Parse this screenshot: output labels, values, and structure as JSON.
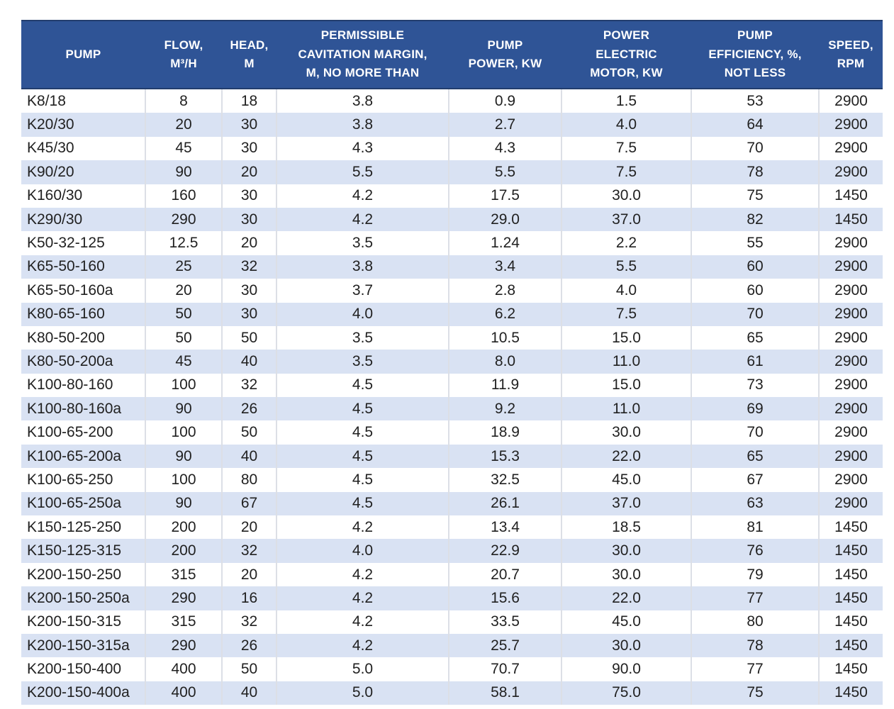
{
  "colors": {
    "header_bg": "#2f5496",
    "header_text": "#ffffff",
    "stripe_bg": "#d9e2f3",
    "cell_text": "#212121"
  },
  "table": {
    "columns": [
      {
        "key": "pump",
        "label": "PUMP"
      },
      {
        "key": "flow",
        "label": "FLOW,\nM³/H"
      },
      {
        "key": "head",
        "label": "HEAD,\nM"
      },
      {
        "key": "cavitation_margin",
        "label": "PERMISSIBLE\nCAVITATION MARGIN,\nM, NO MORE THAN"
      },
      {
        "key": "pump_power",
        "label": "PUMP\nPOWER, KW"
      },
      {
        "key": "motor_power",
        "label": "POWER\nELECTRIC\nMOTOR, KW"
      },
      {
        "key": "efficiency",
        "label": "PUMP\nEFFICIENCY, %,\nNOT LESS"
      },
      {
        "key": "speed",
        "label": "SPEED,\nRPM"
      }
    ],
    "rows": [
      [
        "K8/18",
        "8",
        "18",
        "3.8",
        "0.9",
        "1.5",
        "53",
        "2900"
      ],
      [
        "K20/30",
        "20",
        "30",
        "3.8",
        "2.7",
        "4.0",
        "64",
        "2900"
      ],
      [
        "K45/30",
        "45",
        "30",
        "4.3",
        "4.3",
        "7.5",
        "70",
        "2900"
      ],
      [
        "K90/20",
        "90",
        "20",
        "5.5",
        "5.5",
        "7.5",
        "78",
        "2900"
      ],
      [
        "K160/30",
        "160",
        "30",
        "4.2",
        "17.5",
        "30.0",
        "75",
        "1450"
      ],
      [
        "K290/30",
        "290",
        "30",
        "4.2",
        "29.0",
        "37.0",
        "82",
        "1450"
      ],
      [
        "K50-32-125",
        "12.5",
        "20",
        "3.5",
        "1.24",
        "2.2",
        "55",
        "2900"
      ],
      [
        "K65-50-160",
        "25",
        "32",
        "3.8",
        "3.4",
        "5.5",
        "60",
        "2900"
      ],
      [
        "K65-50-160a",
        "20",
        "30",
        "3.7",
        "2.8",
        "4.0",
        "60",
        "2900"
      ],
      [
        "K80-65-160",
        "50",
        "30",
        "4.0",
        "6.2",
        "7.5",
        "70",
        "2900"
      ],
      [
        "K80-50-200",
        "50",
        "50",
        "3.5",
        "10.5",
        "15.0",
        "65",
        "2900"
      ],
      [
        "K80-50-200a",
        "45",
        "40",
        "3.5",
        "8.0",
        "11.0",
        "61",
        "2900"
      ],
      [
        "K100-80-160",
        "100",
        "32",
        "4.5",
        "11.9",
        "15.0",
        "73",
        "2900"
      ],
      [
        "K100-80-160a",
        "90",
        "26",
        "4.5",
        "9.2",
        "11.0",
        "69",
        "2900"
      ],
      [
        "K100-65-200",
        "100",
        "50",
        "4.5",
        "18.9",
        "30.0",
        "70",
        "2900"
      ],
      [
        "K100-65-200a",
        "90",
        "40",
        "4.5",
        "15.3",
        "22.0",
        "65",
        "2900"
      ],
      [
        "K100-65-250",
        "100",
        "80",
        "4.5",
        "32.5",
        "45.0",
        "67",
        "2900"
      ],
      [
        "K100-65-250a",
        "90",
        "67",
        "4.5",
        "26.1",
        "37.0",
        "63",
        "2900"
      ],
      [
        "K150-125-250",
        "200",
        "20",
        "4.2",
        "13.4",
        "18.5",
        "81",
        "1450"
      ],
      [
        "K150-125-315",
        "200",
        "32",
        "4.0",
        "22.9",
        "30.0",
        "76",
        "1450"
      ],
      [
        "K200-150-250",
        "315",
        "20",
        "4.2",
        "20.7",
        "30.0",
        "79",
        "1450"
      ],
      [
        "K200-150-250a",
        "290",
        "16",
        "4.2",
        "15.6",
        "22.0",
        "77",
        "1450"
      ],
      [
        "K200-150-315",
        "315",
        "32",
        "4.2",
        "33.5",
        "45.0",
        "80",
        "1450"
      ],
      [
        "K200-150-315a",
        "290",
        "26",
        "4.2",
        "25.7",
        "30.0",
        "78",
        "1450"
      ],
      [
        "K200-150-400",
        "400",
        "50",
        "5.0",
        "70.7",
        "90.0",
        "77",
        "1450"
      ],
      [
        "K200-150-400a",
        "400",
        "40",
        "5.0",
        "58.1",
        "75.0",
        "75",
        "1450"
      ]
    ]
  }
}
